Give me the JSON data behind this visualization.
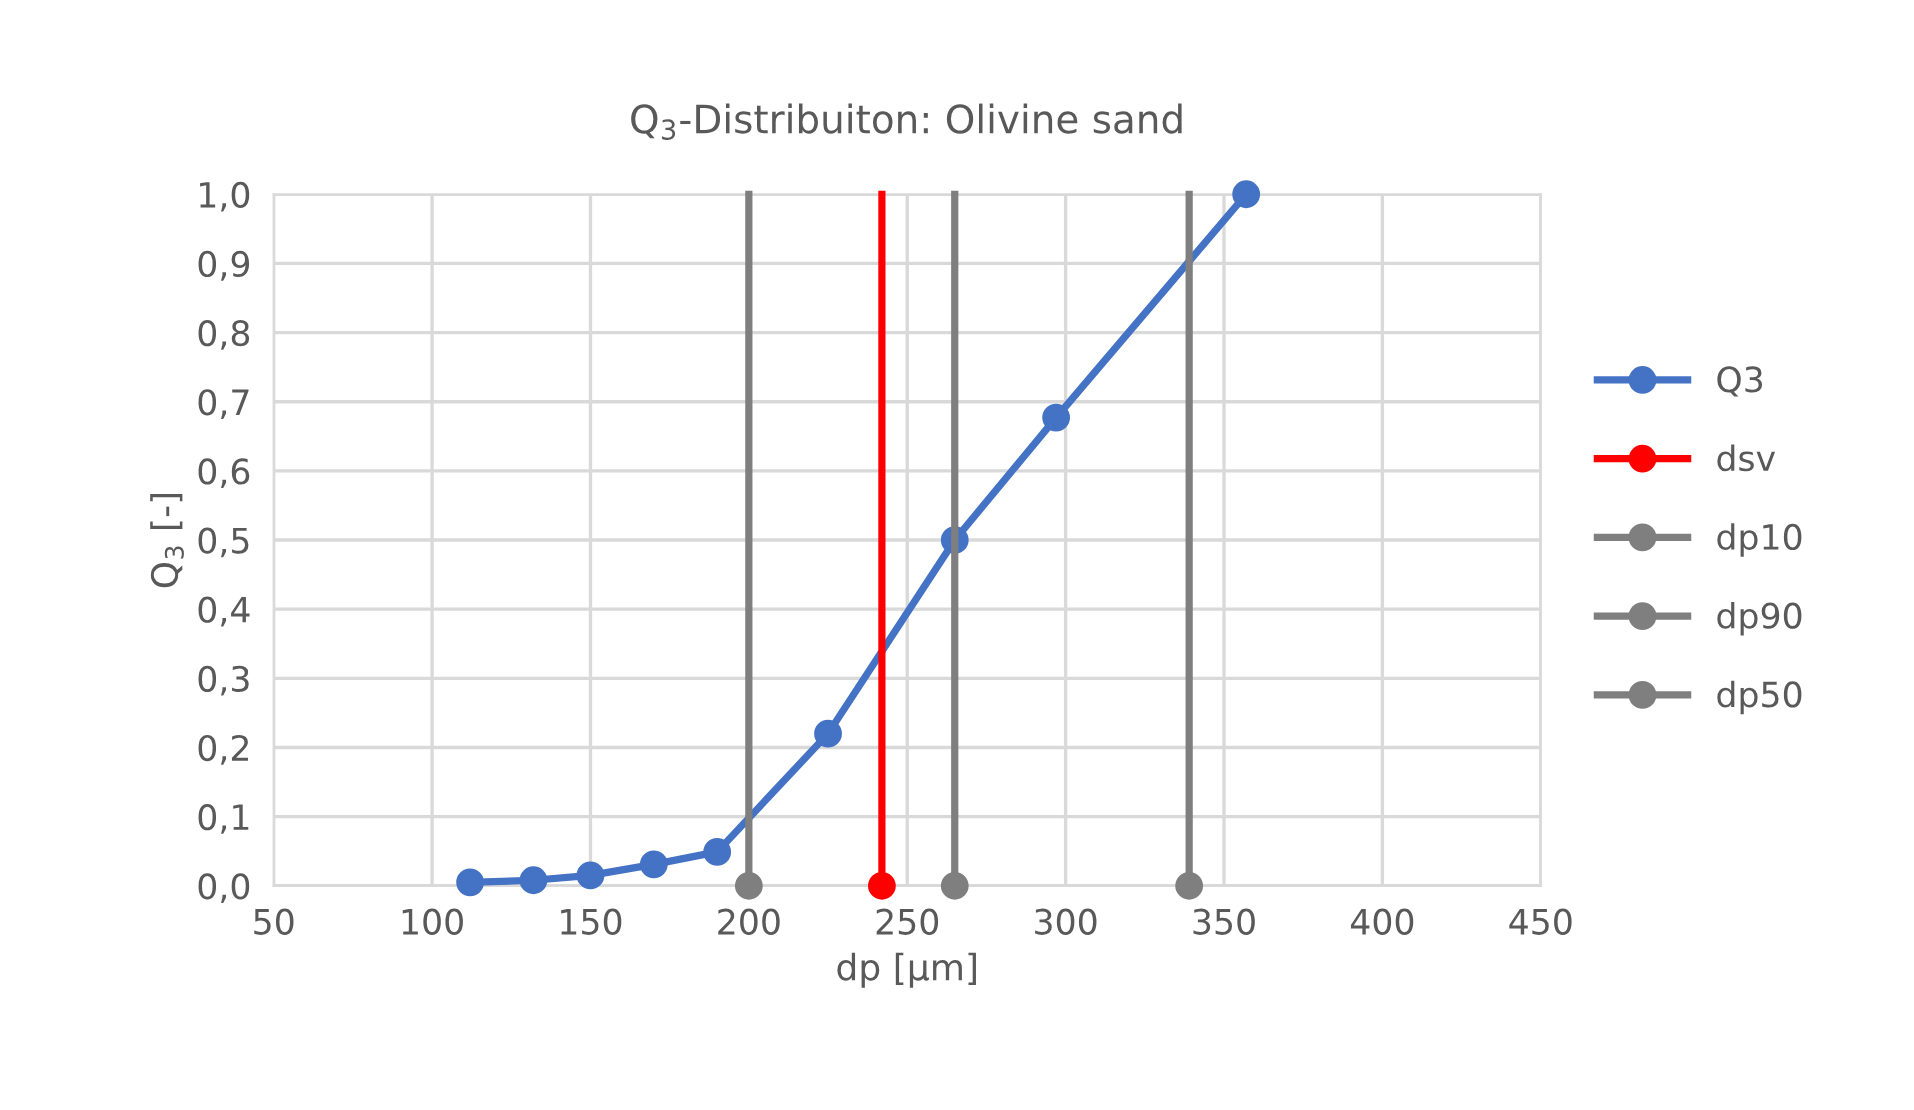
{
  "chart_data": {
    "type": "line",
    "title": "Q$_{3}$-Distribuiton: Olivine sand",
    "xlabel": "dp [µm]",
    "ylabel": "Q$_{3}$ [-]",
    "xlim": [
      50,
      450
    ],
    "xticks": [
      50,
      100,
      150,
      200,
      250,
      300,
      350,
      400,
      450
    ],
    "ylim": [
      0,
      1
    ],
    "yticks": [
      {
        "value": 0,
        "label": "0,0"
      },
      {
        "value": 0.1,
        "label": "0,1"
      },
      {
        "value": 0.2,
        "label": "0,2"
      },
      {
        "value": 0.3,
        "label": "0,3"
      },
      {
        "value": 0.4,
        "label": "0,4"
      },
      {
        "value": 0.5,
        "label": "0,5"
      },
      {
        "value": 0.6,
        "label": "0,6"
      },
      {
        "value": 0.7,
        "label": "0,7"
      },
      {
        "value": 0.8,
        "label": "0,8"
      },
      {
        "value": 0.9,
        "label": "0,9"
      },
      {
        "value": 1.0,
        "label": "1,0"
      }
    ],
    "grid": true,
    "legend": "right",
    "marker": "circle",
    "line_style": "solid",
    "series": [
      {
        "name": "Q3",
        "color": "#4472c4",
        "x": [
          112,
          132,
          150,
          170,
          190,
          225,
          265,
          297,
          357
        ],
        "values": [
          0.005,
          0.008,
          0.015,
          0.031,
          0.049,
          0.22,
          0.5,
          0.677,
          1.0
        ]
      },
      {
        "name": "dsv",
        "color": "#ff0000",
        "x": [
          242,
          242
        ],
        "values": [
          0,
          1
        ]
      },
      {
        "name": "dp10",
        "color": "#7f7f7f",
        "x": [
          200,
          200
        ],
        "values": [
          0,
          1
        ]
      },
      {
        "name": "dp90",
        "color": "#7f7f7f",
        "x": [
          339,
          339
        ],
        "values": [
          0,
          1
        ]
      },
      {
        "name": "dp50",
        "color": "#7f7f7f",
        "x": [
          265,
          265
        ],
        "values": [
          0,
          1
        ]
      }
    ]
  }
}
